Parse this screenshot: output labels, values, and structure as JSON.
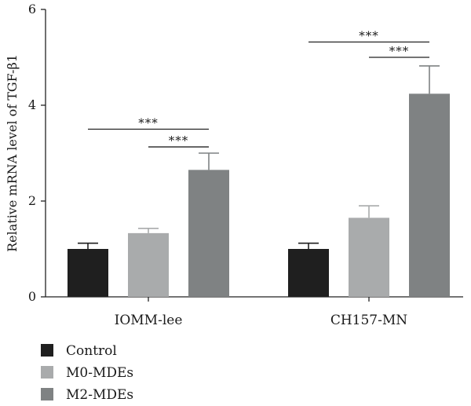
{
  "chart_data": {
    "type": "bar",
    "ylabel": "Relative mRNA level of TGF-β1",
    "xlabel": "",
    "ylim": [
      0,
      6
    ],
    "yticks": [
      0,
      2,
      4,
      6
    ],
    "categories": [
      "IOMM-lee",
      "CH157-MN"
    ],
    "series": [
      {
        "name": "Control",
        "color": "#1f1f1f",
        "values": [
          1.0,
          1.0
        ],
        "errors": [
          0.12,
          0.12
        ]
      },
      {
        "name": "M0-MDEs",
        "color": "#a9abac",
        "values": [
          1.33,
          1.65
        ],
        "errors": [
          0.1,
          0.25
        ]
      },
      {
        "name": "M2-MDEs",
        "color": "#7f8283",
        "values": [
          2.65,
          4.24
        ],
        "errors": [
          0.35,
          0.58
        ]
      }
    ],
    "significance": [
      {
        "category": 0,
        "from_series": 0,
        "to_series": 2,
        "y": 3.5,
        "label": "***"
      },
      {
        "category": 0,
        "from_series": 1,
        "to_series": 2,
        "y": 3.13,
        "label": "***"
      },
      {
        "category": 1,
        "from_series": 0,
        "to_series": 2,
        "y": 5.32,
        "label": "***"
      },
      {
        "category": 1,
        "from_series": 1,
        "to_series": 2,
        "y": 5.0,
        "label": "***"
      }
    ],
    "legend_position": "bottom-left",
    "grid": false
  }
}
